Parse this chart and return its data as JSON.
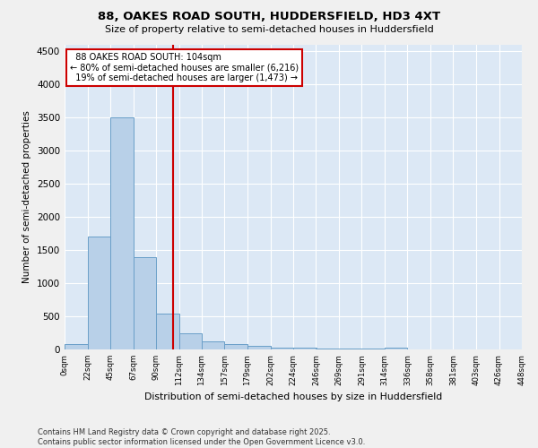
{
  "title1": "88, OAKES ROAD SOUTH, HUDDERSFIELD, HD3 4XT",
  "title2": "Size of property relative to semi-detached houses in Huddersfield",
  "xlabel": "Distribution of semi-detached houses by size in Huddersfield",
  "ylabel": "Number of semi-detached properties",
  "bin_labels": [
    "0sqm",
    "22sqm",
    "45sqm",
    "67sqm",
    "90sqm",
    "112sqm",
    "134sqm",
    "157sqm",
    "179sqm",
    "202sqm",
    "224sqm",
    "246sqm",
    "269sqm",
    "291sqm",
    "314sqm",
    "336sqm",
    "358sqm",
    "381sqm",
    "403sqm",
    "426sqm",
    "448sqm"
  ],
  "bar_values": [
    75,
    1700,
    3500,
    1390,
    540,
    250,
    125,
    75,
    50,
    30,
    25,
    15,
    10,
    10,
    30,
    5,
    5,
    5,
    3,
    2
  ],
  "bar_color": "#b8d0e8",
  "bar_edge_color": "#6a9fc8",
  "property_line_x": 104,
  "property_line_label": "88 OAKES ROAD SOUTH: 104sqm",
  "smaller_pct": "80%",
  "smaller_count": "6,216",
  "larger_pct": "19%",
  "larger_count": "1,473",
  "red_line_color": "#cc0000",
  "ylim": [
    0,
    4600
  ],
  "yticks": [
    0,
    500,
    1000,
    1500,
    2000,
    2500,
    3000,
    3500,
    4000,
    4500
  ],
  "footer1": "Contains HM Land Registry data © Crown copyright and database right 2025.",
  "footer2": "Contains public sector information licensed under the Open Government Licence v3.0.",
  "plot_bg_color": "#dce8f5",
  "fig_bg_color": "#f0f0f0",
  "bin_width": 22
}
